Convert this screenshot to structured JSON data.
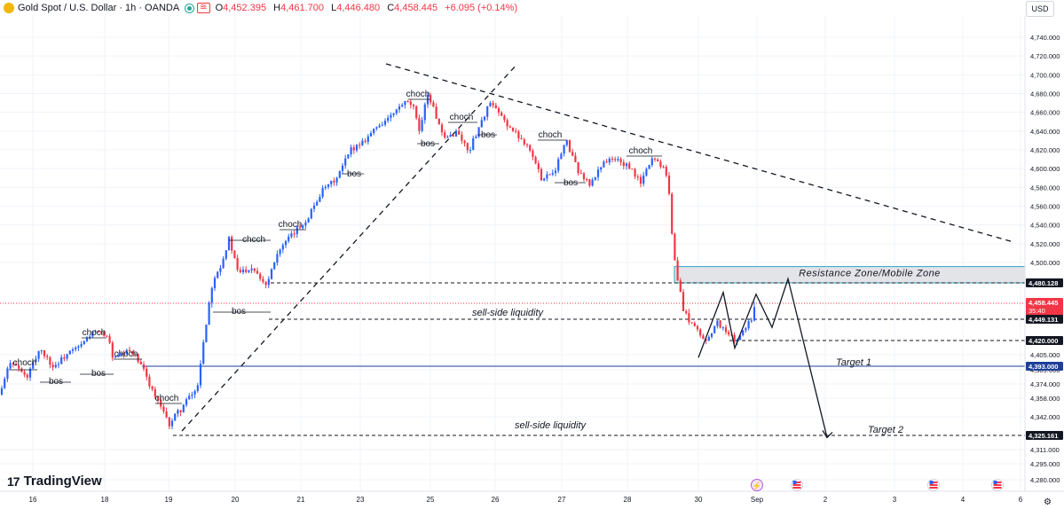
{
  "header": {
    "title": "Gold Spot / U.S. Dollar · 1h · OANDA",
    "ohlc": [
      {
        "k": "O",
        "v": "4,452.395"
      },
      {
        "k": "H",
        "v": "4,461.700"
      },
      {
        "k": "L",
        "v": "4,446.480"
      },
      {
        "k": "C",
        "v": "4,458.445"
      },
      {
        "k": "",
        "v": "+6.095 (+0.14%)"
      }
    ]
  },
  "currency_button": "USD",
  "brand": "TradingView",
  "chart_data": {
    "type": "candlestick",
    "symbol": "Gold Spot / U.S. Dollar",
    "timeframe": "1h",
    "colors": {
      "up": "#2962ff",
      "down": "#f23645",
      "grid": "#f0f3fa",
      "text": "#131722"
    },
    "y_axis": {
      "range": [
        4268,
        4760
      ],
      "ticks": [
        "4,740.000",
        "4,720.000",
        "4,700.000",
        "4,680.000",
        "4,660.000",
        "4,640.000",
        "4,620.000",
        "4,600.000",
        "4,580.000",
        "4,560.000",
        "4,540.000",
        "4,520.000",
        "4,500.000",
        "4,405.000",
        "4,389.000",
        "4,374.000",
        "4,358.000",
        "4,342.000",
        "4,311.000",
        "4,295.000",
        "4,280.000"
      ],
      "tick_values": [
        4740,
        4720,
        4700,
        4680,
        4660,
        4640,
        4620,
        4600,
        4580,
        4560,
        4540,
        4520,
        4500,
        4405,
        4389,
        4374,
        4358,
        4342,
        4311,
        4295,
        4280
      ]
    },
    "x_axis": {
      "labels": [
        "16",
        "18",
        "19",
        "20",
        "21",
        "23",
        "25",
        "26",
        "27",
        "28",
        "30",
        "Sep",
        "2",
        "3",
        "4",
        "6"
      ],
      "label_positions": [
        37,
        118,
        190,
        265,
        339,
        406,
        485,
        558,
        633,
        707,
        787,
        853,
        930,
        1008,
        1085,
        1150
      ]
    },
    "price_tags": [
      {
        "label": "4,480.128",
        "value": 4480.128,
        "color": "#131722"
      },
      {
        "label": "4,458.445",
        "sub": "35:40",
        "value": 4458.445,
        "color": "#f23645"
      },
      {
        "label": "4,449.131",
        "value": 4449.131,
        "color": "#131722"
      },
      {
        "label": "4,420.000",
        "value": 4420.0,
        "color": "#131722"
      },
      {
        "label": "4,393.000",
        "value": 4393.0,
        "color": "#1e3f9a"
      },
      {
        "label": "4,325.161",
        "value": 4325.161,
        "color": "#131722"
      }
    ],
    "levels": [
      {
        "value": 4480.128,
        "style": "dashed",
        "from_x": 4,
        "color": "#131722"
      },
      {
        "value": 4449.131,
        "style": "dashed",
        "from_x": 4,
        "color": "#131722"
      },
      {
        "value": 4420.0,
        "style": "dashed",
        "from_x": 4,
        "color": "#131722"
      },
      {
        "value": 4393.0,
        "style": "solid",
        "from_x": 0,
        "color": "#1e3f9a"
      },
      {
        "value": 4325.161,
        "style": "dashed",
        "from_x": 4,
        "color": "#131722"
      },
      {
        "value": 4458.445,
        "style": "dotted",
        "from_x": 0,
        "color": "#f23645"
      }
    ],
    "zone": {
      "label": "Resistance Zone/Mobile Zone",
      "top": 4496,
      "bottom": 4480.128
    },
    "annotations": [
      {
        "text": "sell-side liquidity",
        "level": 4449.131
      },
      {
        "text": "sell-side liquidity",
        "level": 4325.161
      },
      {
        "text": "Target 1",
        "level": 4393.0
      },
      {
        "text": "Target 2",
        "level": 4325.161
      }
    ],
    "structure_labels": [
      {
        "text": "choch"
      },
      {
        "text": "bos"
      },
      {
        "text": "bos"
      },
      {
        "text": "choch"
      },
      {
        "text": "choch"
      },
      {
        "text": "choch"
      },
      {
        "text": "bos"
      },
      {
        "text": "chcch"
      },
      {
        "text": "choch"
      },
      {
        "text": "bos"
      },
      {
        "text": "choch"
      },
      {
        "text": "bos"
      },
      {
        "text": "choch"
      },
      {
        "text": "bos"
      },
      {
        "text": "choch"
      },
      {
        "text": "bos"
      },
      {
        "text": "choch"
      },
      {
        "text": "bos"
      },
      {
        "text": "choch"
      }
    ],
    "candles_source": "approximate hourly OHLC path reconstructed from visible price action"
  }
}
